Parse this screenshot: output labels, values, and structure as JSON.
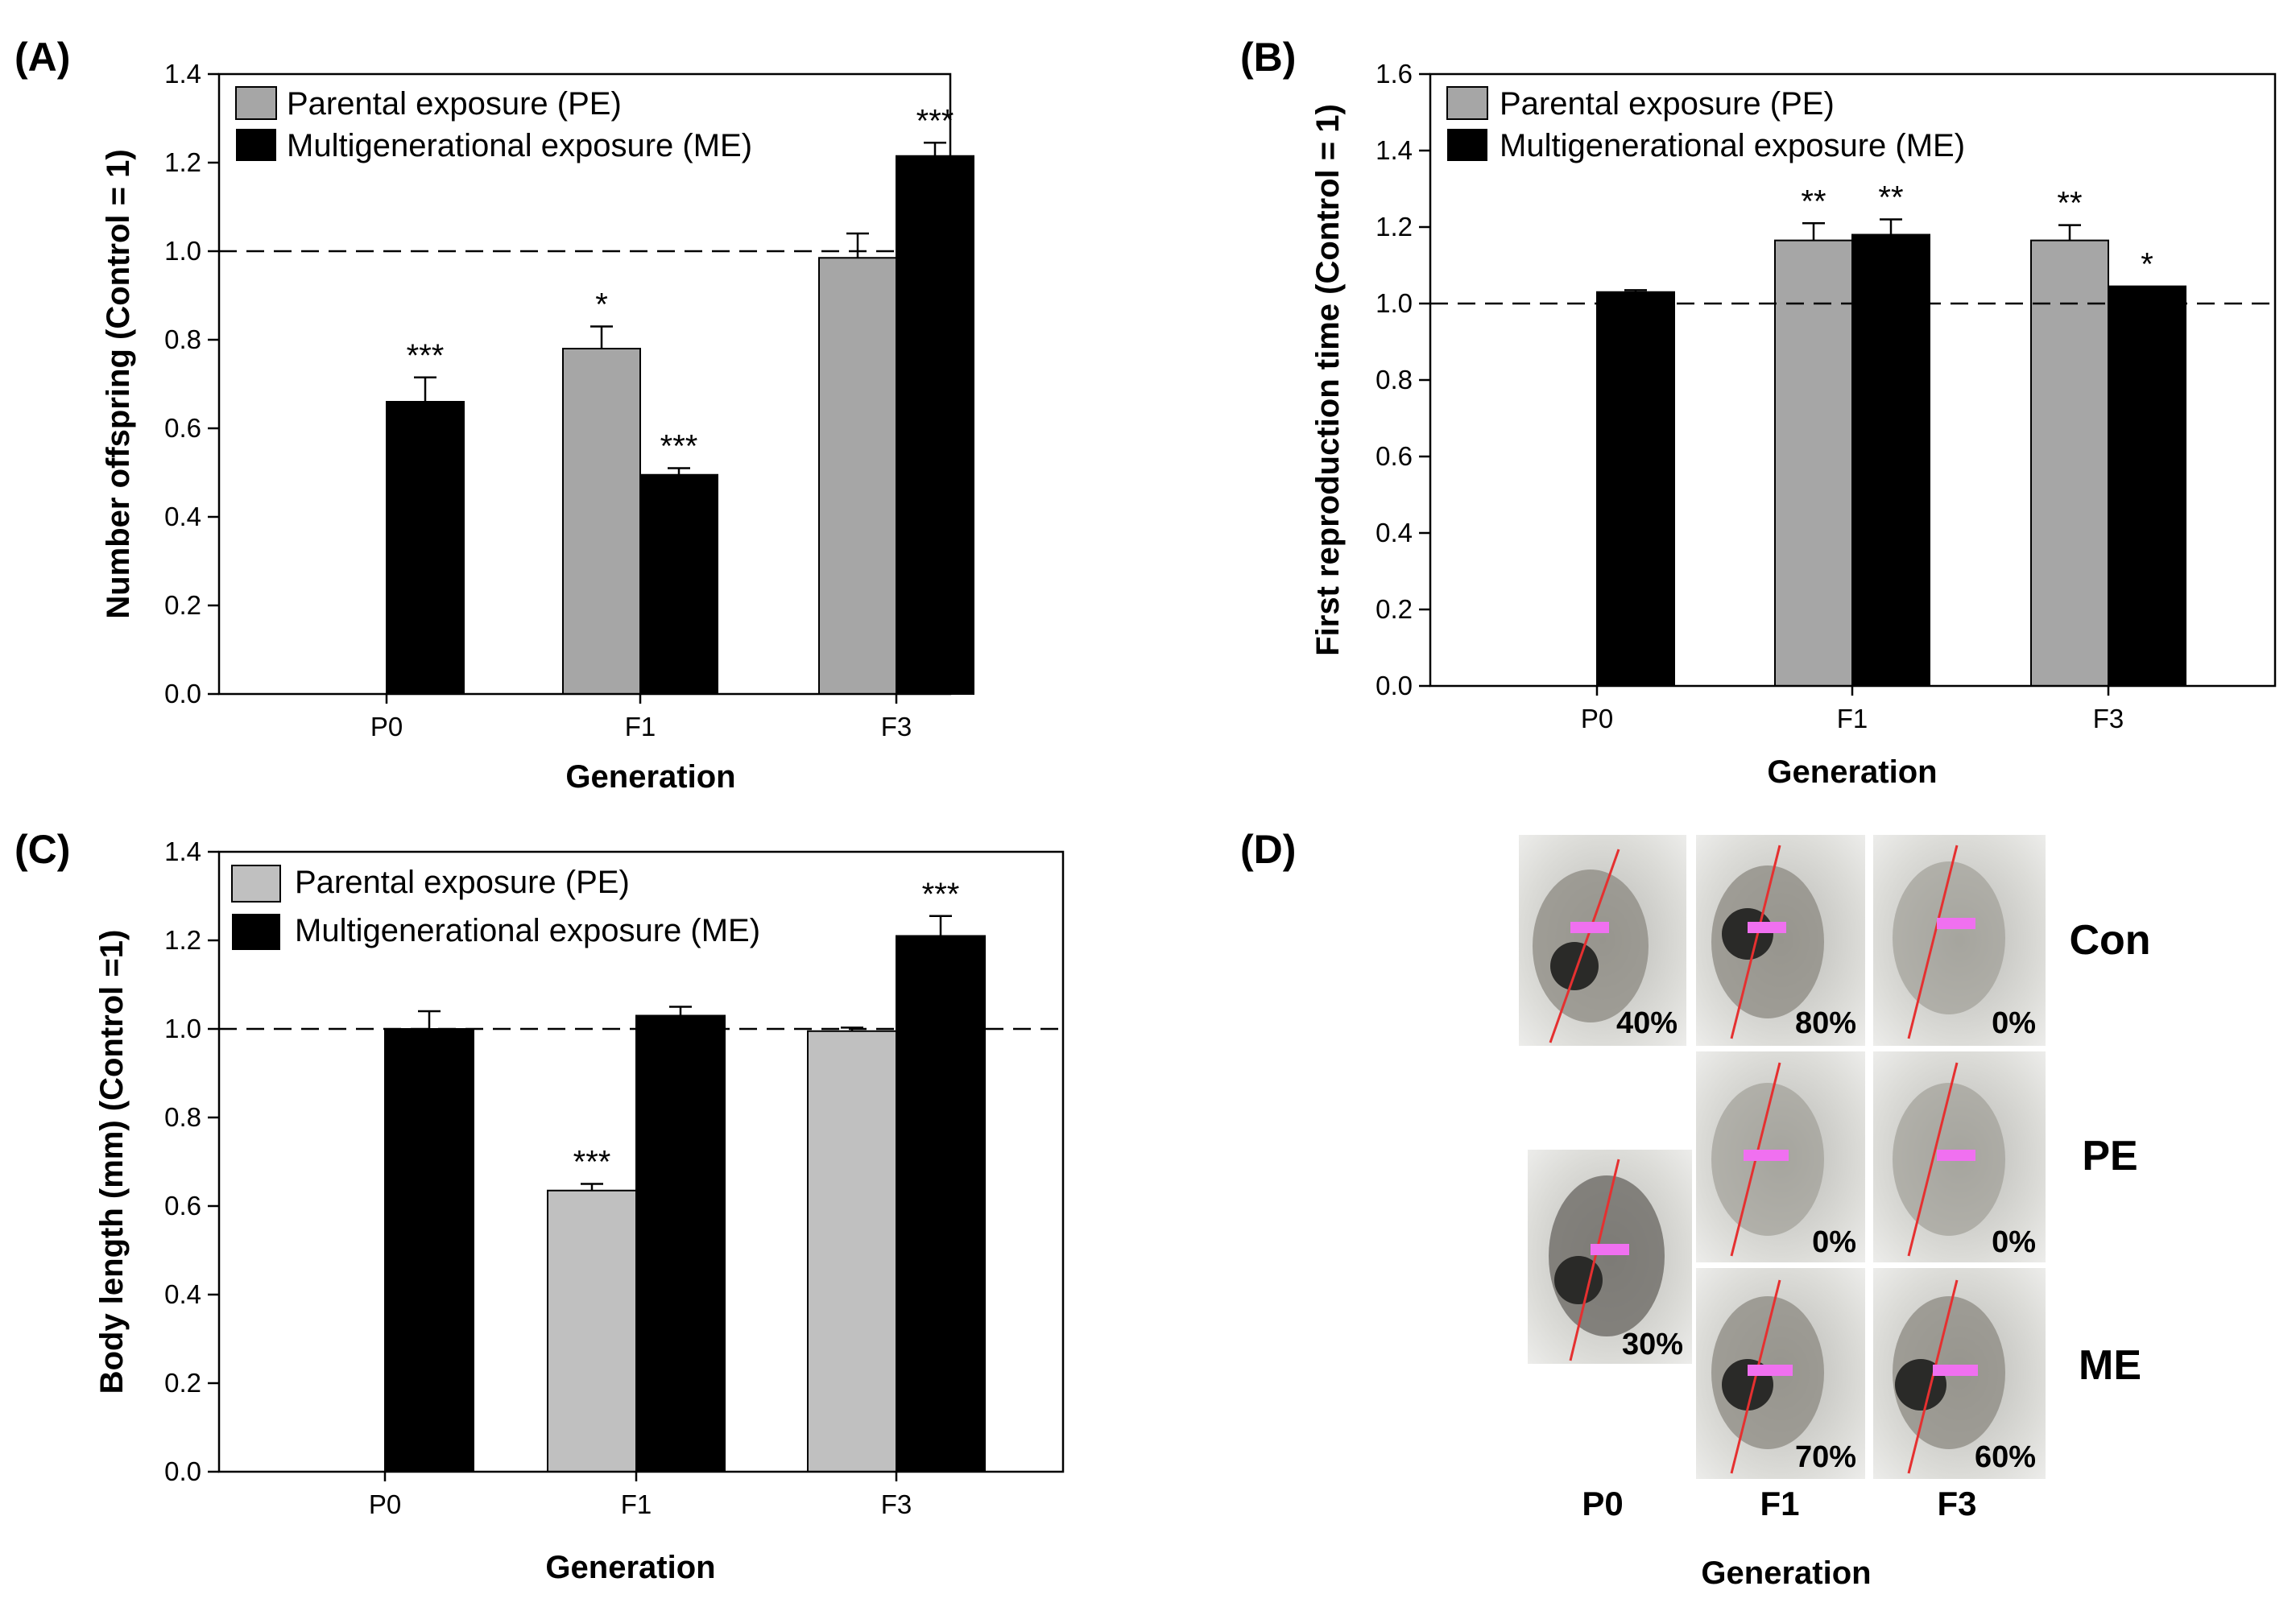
{
  "colors": {
    "pe": "#a6a6a6",
    "pe_c": "#c0c0c0",
    "me": "#000000"
  },
  "legend": {
    "pe": "Parental exposure (PE)",
    "me": "Multigenerational exposure (ME)"
  },
  "chart_data": [
    {
      "id": "A",
      "panel_label": "(A)",
      "type": "bar",
      "categories": [
        "P0",
        "F1",
        "F3"
      ],
      "series": [
        {
          "name": "Parental exposure (PE)",
          "values": [
            null,
            0.78,
            0.985
          ],
          "errors": [
            null,
            0.05,
            0.055
          ]
        },
        {
          "name": "Multigenerational exposure (ME)",
          "values": [
            0.66,
            0.495,
            1.215
          ],
          "errors": [
            0.055,
            0.015,
            0.03
          ]
        }
      ],
      "significance": [
        [
          null,
          "*",
          ""
        ],
        [
          "***",
          "***",
          "***"
        ]
      ],
      "xlabel": "Generation",
      "ylabel": "Number offspring (Control = 1)",
      "ylim": [
        0,
        1.4
      ],
      "yticks": [
        "0.0",
        "0.2",
        "0.4",
        "0.6",
        "0.8",
        "1.0",
        "1.2",
        "1.4"
      ],
      "reference_line": 1.0,
      "legend_position": "top-left"
    },
    {
      "id": "B",
      "panel_label": "(B)",
      "type": "bar",
      "categories": [
        "P0",
        "F1",
        "F3"
      ],
      "series": [
        {
          "name": "Parental exposure (PE)",
          "values": [
            null,
            1.165,
            1.165
          ],
          "errors": [
            null,
            0.045,
            0.04
          ]
        },
        {
          "name": "Multigenerational exposure (ME)",
          "values": [
            1.03,
            1.18,
            1.045
          ],
          "errors": [
            0.005,
            0.04,
            0.0
          ]
        }
      ],
      "significance": [
        [
          null,
          "**",
          "**"
        ],
        [
          "",
          "**",
          "*"
        ]
      ],
      "xlabel": "Generation",
      "ylabel": "First reproduction time (Control = 1)",
      "ylim": [
        0,
        1.6
      ],
      "yticks": [
        "0.0",
        "0.2",
        "0.4",
        "0.6",
        "0.8",
        "1.0",
        "1.2",
        "1.4",
        "1.6"
      ],
      "reference_line": 1.0,
      "legend_position": "top-left"
    },
    {
      "id": "C",
      "panel_label": "(C)",
      "type": "bar",
      "categories": [
        "P0",
        "F1",
        "F3"
      ],
      "series": [
        {
          "name": "Parental exposure (PE)",
          "values": [
            null,
            0.635,
            0.995
          ],
          "errors": [
            null,
            0.015,
            0.008
          ]
        },
        {
          "name": "Multigenerational exposure (ME)",
          "values": [
            1.0,
            1.03,
            1.21
          ],
          "errors": [
            0.04,
            0.02,
            0.045
          ]
        }
      ],
      "significance": [
        [
          null,
          "***",
          ""
        ],
        [
          "",
          "",
          "***"
        ]
      ],
      "xlabel": "Generation",
      "ylabel": "Body length (mm) (Control =1)",
      "ylim": [
        0,
        1.4
      ],
      "yticks": [
        "0.0",
        "0.2",
        "0.4",
        "0.6",
        "0.8",
        "1.0",
        "1.2",
        "1.4"
      ],
      "reference_line": 1.0,
      "legend_position": "top-left"
    }
  ],
  "panel_d": {
    "label": "(D)",
    "row_labels": [
      "Con",
      "PE",
      "ME"
    ],
    "col_labels": [
      "P0",
      "F1",
      "F3"
    ],
    "xlabel": "Generation",
    "percentages": {
      "con_p0": "40%",
      "con_f1": "80%",
      "con_f3": "0%",
      "pe_f1": "0%",
      "pe_f3": "0%",
      "me_p0": "30%",
      "me_f1": "70%",
      "me_f3": "60%"
    }
  }
}
